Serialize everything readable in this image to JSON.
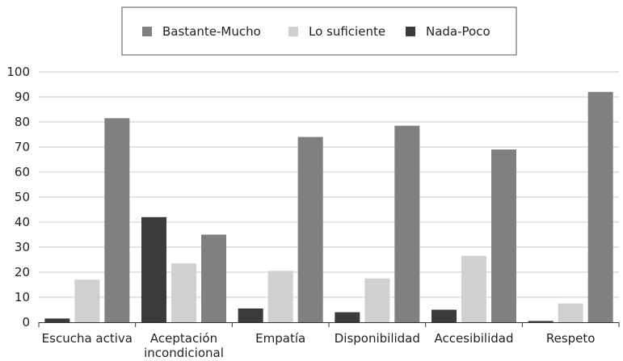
{
  "chart_data": {
    "type": "bar",
    "categories": [
      [
        "Escucha activa"
      ],
      [
        "Aceptación",
        "incondicional"
      ],
      [
        "Empatía"
      ],
      [
        "Disponibilidad"
      ],
      [
        "Accesibilidad"
      ],
      [
        "Respeto"
      ]
    ],
    "series": [
      {
        "name": "Nada-Poco",
        "color": "#3b3b3b",
        "values": [
          1.5,
          42,
          5.5,
          4,
          5,
          0.5
        ]
      },
      {
        "name": "Lo suficiente",
        "color": "#d0d0d0",
        "values": [
          17,
          23.5,
          20.5,
          17.5,
          26.5,
          7.5
        ]
      },
      {
        "name": "Bastante-Mucho",
        "color": "#808080",
        "values": [
          81.5,
          35,
          74,
          78.5,
          69,
          92
        ]
      }
    ],
    "legend_order": [
      "Bastante-Mucho",
      "Lo suficiente",
      "Nada-Poco"
    ],
    "legend_position": "top-center",
    "yticks": [
      0,
      10,
      20,
      30,
      40,
      50,
      60,
      70,
      80,
      90,
      100
    ],
    "ylim": [
      0,
      100
    ],
    "grid": true,
    "title": "",
    "xlabel": "",
    "ylabel": ""
  }
}
